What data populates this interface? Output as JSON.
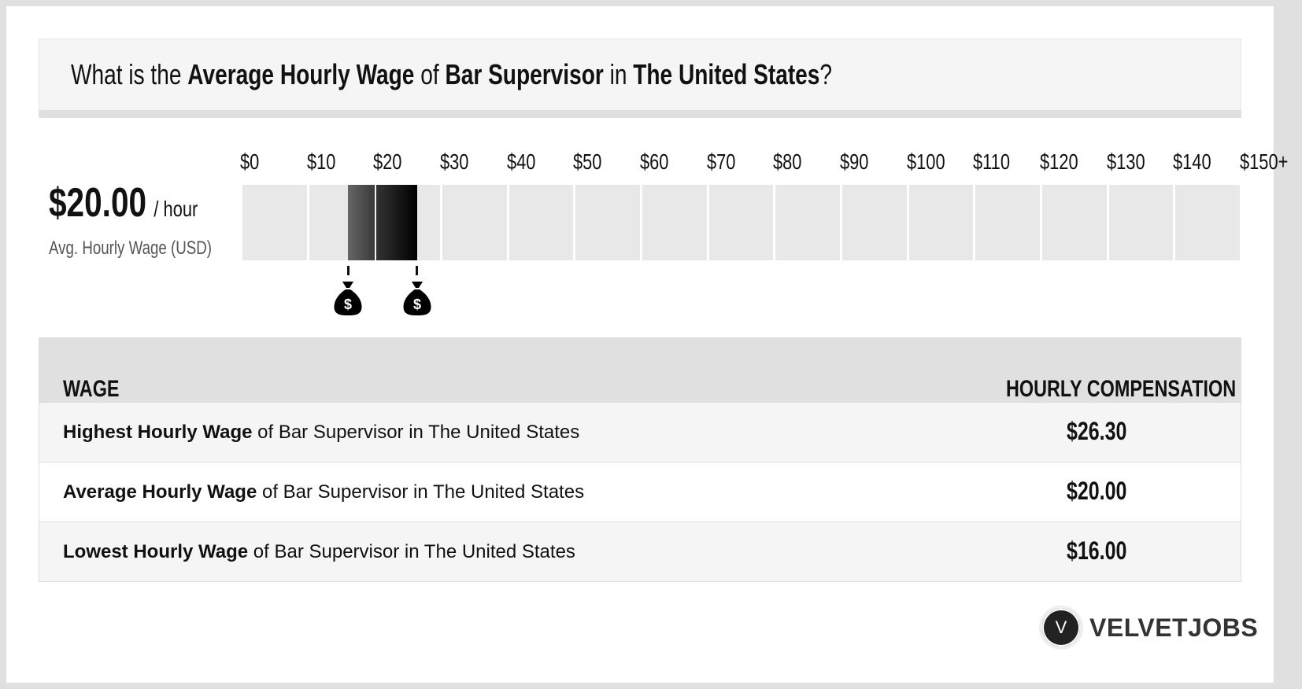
{
  "title": {
    "p1": "What is the ",
    "b1": "Average Hourly Wage",
    "p2": " of ",
    "b2": "Bar Supervisor",
    "p3": " in ",
    "b3": "The United States",
    "p4": "?"
  },
  "summary": {
    "value": "$20.00",
    "unit": "/ hour",
    "label": "Avg. Hourly Wage (USD)"
  },
  "chart_data": {
    "type": "bar",
    "ticks": [
      "$0",
      "$10",
      "$20",
      "$30",
      "$40",
      "$50",
      "$60",
      "$70",
      "$80",
      "$90",
      "$100",
      "$110",
      "$120",
      "$130",
      "$140",
      "$150+"
    ],
    "range": [
      0,
      150
    ],
    "low": 16.0,
    "average": 20.0,
    "high": 26.3,
    "marker_icon": "money-bag-icon"
  },
  "table": {
    "headers": [
      "WAGE",
      "HOURLY COMPENSATION"
    ],
    "rows": [
      {
        "bold": "Highest Hourly Wage",
        "rest": " of Bar Supervisor in The United States",
        "value": "$26.30"
      },
      {
        "bold": "Average Hourly Wage",
        "rest": " of Bar Supervisor in The United States",
        "value": "$20.00"
      },
      {
        "bold": "Lowest Hourly Wage",
        "rest": " of Bar Supervisor in The United States",
        "value": "$16.00"
      }
    ]
  },
  "logo": {
    "mark": "V",
    "text": "VELVETJOBS"
  }
}
